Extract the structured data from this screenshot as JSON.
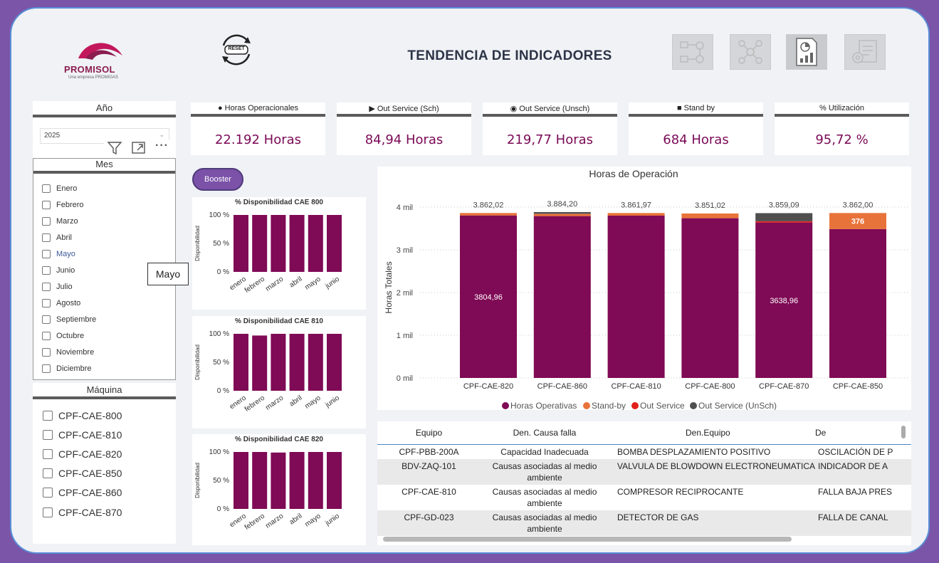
{
  "header": {
    "title": "TENDENCIA DE INDICADORES",
    "logo_name": "PROMISOL",
    "logo_sub": "Una empresa PROMIGAS",
    "reset_label": "RESET"
  },
  "nav_icons": [
    "process-flow-icon",
    "people-network-icon",
    "report-chart-icon",
    "gear-document-icon"
  ],
  "filters": {
    "year": {
      "title": "Año",
      "value": "2025"
    },
    "month": {
      "title": "Mes",
      "items": [
        "Enero",
        "Febrero",
        "Marzo",
        "Abril",
        "Mayo",
        "Junio",
        "Julio",
        "Agosto",
        "Septiembre",
        "Octubre",
        "Noviembre",
        "Diciembre"
      ],
      "hovered": "Mayo"
    },
    "machine": {
      "title": "Máquina",
      "items": [
        "CPF-CAE-800",
        "CPF-CAE-810",
        "CPF-CAE-820",
        "CPF-CAE-850",
        "CPF-CAE-860",
        "CPF-CAE-870"
      ]
    }
  },
  "tooltip": "Mayo",
  "kpis": [
    {
      "label": "● Horas Operacionales",
      "value": "22.192 Horas"
    },
    {
      "label": "▶ Out Service (Sch)",
      "value": "84,94 Horas"
    },
    {
      "label": "◉ Out Service (Unsch)",
      "value": "219,77 Horas"
    },
    {
      "label": "■ Stand by",
      "value": "684 Horas"
    },
    {
      "label": "% Utilización",
      "value": "95,72 %"
    }
  ],
  "booster_label": "Booster",
  "colors": {
    "operativas": "#7f0a55",
    "standby": "#e8733a",
    "outservice": "#e3201b",
    "outunsch": "#4f4f4f"
  },
  "availability_charts": [
    {
      "title": "% Disponibilidad CAE 800",
      "ylabel": "Disponibilidad",
      "yticks": [
        "100 %",
        "50 %",
        "0 %"
      ],
      "categories": [
        "enero",
        "febrero",
        "marzo",
        "abril",
        "mayo",
        "junio"
      ],
      "values": [
        100,
        100,
        100,
        100,
        100,
        100
      ]
    },
    {
      "title": "% Disponibilidad CAE 810",
      "ylabel": "Disponibilidad",
      "yticks": [
        "100 %",
        "50 %",
        "0 %"
      ],
      "categories": [
        "enero",
        "febrero",
        "marzo",
        "abril",
        "mayo",
        "junio"
      ],
      "values": [
        100,
        97,
        100,
        100,
        100,
        100
      ]
    },
    {
      "title": "% Disponibilidad CAE 820",
      "ylabel": "Disponibilidad",
      "yticks": [
        "100 %",
        "50 %",
        "0 %"
      ],
      "categories": [
        "enero",
        "febrero",
        "marzo",
        "abril",
        "mayo",
        "junio"
      ],
      "values": [
        100,
        100,
        99,
        100,
        100,
        100
      ]
    }
  ],
  "chart_data": {
    "type": "bar",
    "title": "Horas de Operación",
    "ylabel": "Horas Totales",
    "ylim": [
      0,
      4000
    ],
    "yticks": [
      "0 mil",
      "1 mil",
      "2 mil",
      "3 mil",
      "4 mil"
    ],
    "categories": [
      "CPF-CAE-820",
      "CPF-CAE-860",
      "CPF-CAE-810",
      "CPF-CAE-800",
      "CPF-CAE-870",
      "CPF-CAE-850"
    ],
    "totals": [
      "3.862,02",
      "3.884,20",
      "3.861,97",
      "3.851,02",
      "3.859,09",
      "3.862,00"
    ],
    "series": [
      {
        "name": "Horas Operativas",
        "values": [
          3804.96,
          3790,
          3800,
          3740,
          3638.96,
          3486
        ],
        "labels": [
          "3804,96",
          "",
          "",
          "",
          "3638,96",
          ""
        ]
      },
      {
        "name": "Stand-by",
        "values": [
          57,
          50,
          62,
          111,
          0,
          376
        ],
        "labels": [
          "",
          "",
          "",
          "",
          "",
          "376"
        ]
      },
      {
        "name": "Out Service",
        "values": [
          0,
          4,
          0,
          0,
          30,
          0
        ],
        "labels": [
          "",
          "",
          "",
          "",
          "",
          ""
        ]
      },
      {
        "name": "Out Service (UnSch)",
        "values": [
          0,
          40,
          0,
          0,
          190,
          0
        ],
        "labels": [
          "",
          "",
          "",
          "",
          "",
          ""
        ]
      }
    ],
    "legend": "bottom"
  },
  "table": {
    "columns": [
      "Equipo",
      "Den. Causa falla",
      "Den.Equipo",
      "De"
    ],
    "rows": [
      [
        "CPF-PBB-200A",
        "Capacidad Inadecuada",
        "BOMBA DESPLAZAMIENTO POSITIVO",
        "OSCILACIÓN DE P"
      ],
      [
        "BDV-ZAQ-101",
        "Causas asociadas al medio ambiente",
        "VALVULA DE BLOWDOWN ELECTRONEUMATICA",
        "INDICADOR DE A"
      ],
      [
        "CPF-CAE-810",
        "Causas asociadas al medio ambiente",
        "COMPRESOR RECIPROCANTE",
        "FALLA BAJA PRES"
      ],
      [
        "CPF-GD-023",
        "Causas asociadas al medio ambiente",
        "DETECTOR DE GAS",
        "FALLA DE CANAL"
      ]
    ]
  }
}
